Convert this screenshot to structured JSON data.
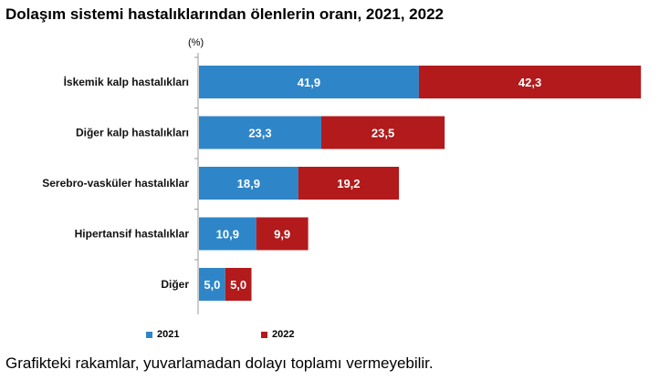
{
  "title": "Dolaşım sistemi hastalıklarından ölenlerin oranı, 2021, 2022",
  "unit_label": "(%)",
  "footnote": "Grafikteki rakamlar, yuvarlamadan dolayı toplamı vermeyebilir.",
  "colors": {
    "s2021": "#2e86c9",
    "s2022": "#b21a1c",
    "axis": "#999999"
  },
  "chart_data": {
    "type": "bar",
    "orientation": "horizontal",
    "stacked": true,
    "categories": [
      "İskemik kalp hastalıkları",
      "Diğer kalp hastalıkları",
      "Serebro-vasküler hastalıklar",
      "Hipertansif hastalıklar",
      "Diğer"
    ],
    "series": [
      {
        "name": "2021",
        "values": [
          41.9,
          23.3,
          18.9,
          10.9,
          5.0
        ],
        "labels": [
          "41,9",
          "23,3",
          "18,9",
          "10,9",
          "5,0"
        ]
      },
      {
        "name": "2022",
        "values": [
          42.3,
          23.5,
          19.2,
          9.9,
          5.0
        ],
        "labels": [
          "42,3",
          "23,5",
          "19,2",
          "9,9",
          "5,0"
        ]
      }
    ],
    "legend_position": "bottom",
    "grid": false
  }
}
